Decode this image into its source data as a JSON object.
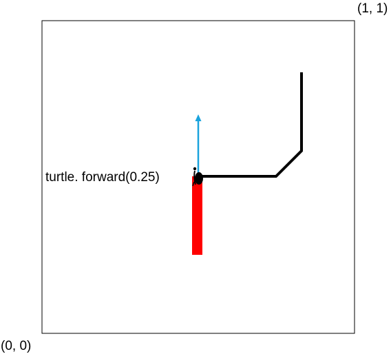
{
  "labels": {
    "origin": "(0, 0)",
    "top_right": "(1, 1)",
    "command": "turtle. forward(0.25)"
  },
  "colors": {
    "frame": "#000000",
    "path": "#000000",
    "heading_arrow": "#1aa3dd",
    "forward_move": "#ff0000",
    "turtle": "#000000"
  },
  "icons": {
    "turtle": "turtle-icon",
    "heading": "arrow-up-icon"
  }
}
